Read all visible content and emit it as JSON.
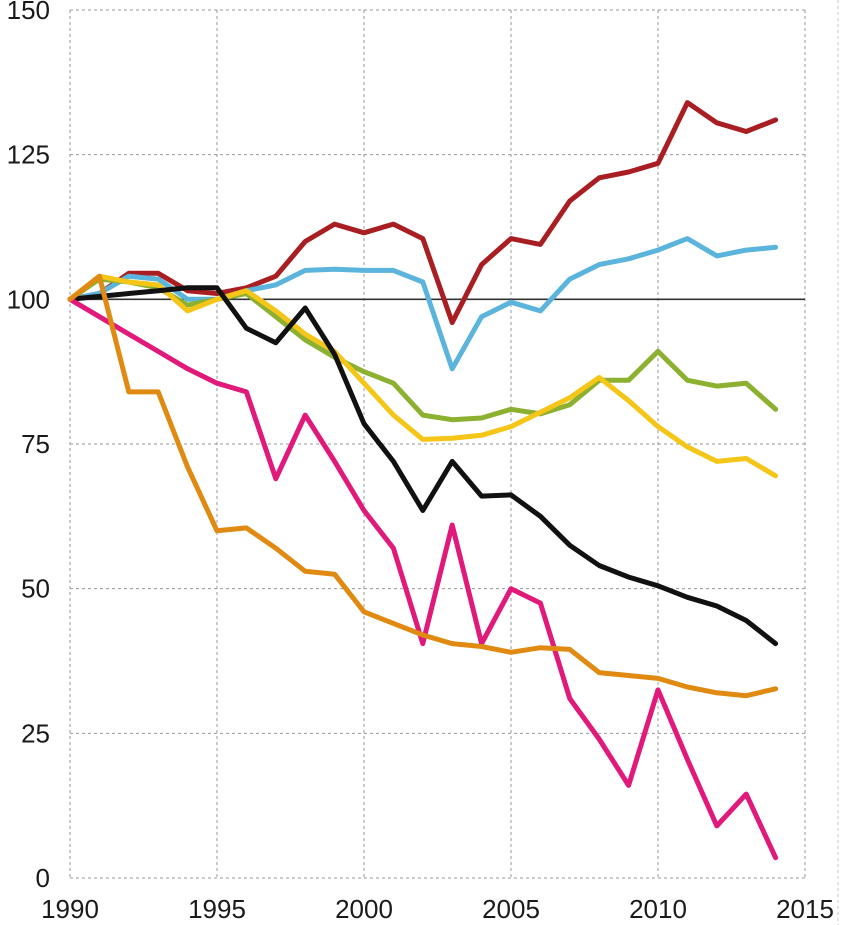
{
  "chart_data": {
    "type": "line",
    "title": "",
    "xlabel": "",
    "ylabel": "",
    "xlim": [
      1990,
      2015
    ],
    "ylim": [
      0,
      150
    ],
    "x_ticks": [
      "1990",
      "1995",
      "2000",
      "2005",
      "2010",
      "2015"
    ],
    "y_ticks": [
      "0",
      "25",
      "50",
      "75",
      "100",
      "125",
      "150"
    ],
    "reference_line": 100,
    "grid": true,
    "legend": "none",
    "x": [
      1990,
      1991,
      1992,
      1993,
      1994,
      1995,
      1996,
      1997,
      1998,
      1999,
      2000,
      2001,
      2002,
      2003,
      2004,
      2005,
      2006,
      2007,
      2008,
      2009,
      2010,
      2011,
      2012,
      2013,
      2014
    ],
    "series": [
      {
        "color": "#a81e22",
        "values": [
          100,
          101,
          104.5,
          104.5,
          101.5,
          101,
          102,
          104,
          110,
          113,
          111.5,
          113,
          110.5,
          96,
          106,
          110.5,
          109.5,
          117,
          121,
          122,
          123.5,
          134,
          130.5,
          129,
          131
        ]
      },
      {
        "color": "#5ab4dc",
        "values": [
          100,
          101,
          104,
          103.5,
          100,
          100,
          101.5,
          102.5,
          105,
          105.2,
          105,
          105,
          103,
          88,
          97,
          99.5,
          98,
          103.5,
          106,
          107,
          108.5,
          110.5,
          107.5,
          108.5,
          109
        ]
      },
      {
        "color": "#8cb02f",
        "values": [
          100,
          103.5,
          103,
          102,
          99,
          100,
          101,
          97,
          93,
          90,
          87.5,
          85.5,
          80,
          79.2,
          79.5,
          81,
          80.2,
          81.8,
          86,
          86,
          91,
          86,
          85,
          85.5,
          81
        ]
      },
      {
        "color": "#f5c518",
        "values": [
          100,
          104,
          103,
          102.5,
          98,
          100,
          101.5,
          98,
          94,
          91,
          85.5,
          80,
          75.8,
          76,
          76.5,
          78,
          80.5,
          83,
          86.5,
          82.5,
          78,
          74.5,
          72,
          72.5,
          69.5
        ]
      },
      {
        "color": "#111111",
        "values": [
          100,
          100.5,
          101,
          101.5,
          102,
          102,
          95,
          92.5,
          98.5,
          90.5,
          78.5,
          72,
          63.5,
          72,
          66,
          66.2,
          62.5,
          57.5,
          54,
          52,
          50.5,
          48.5,
          47,
          44.5,
          40.5
        ]
      },
      {
        "color": "#e0197a",
        "values": [
          100,
          97,
          94,
          91,
          88,
          85.5,
          84,
          69,
          80,
          72,
          63.5,
          57,
          40.5,
          61,
          40.5,
          50,
          47.5,
          31,
          24,
          16,
          32.5,
          20.5,
          9,
          14.5,
          3.5
        ]
      },
      {
        "color": "#e08a12",
        "values": [
          100,
          104,
          84,
          84,
          71,
          60,
          60.5,
          57,
          53,
          52.5,
          46,
          44,
          42,
          40.5,
          40,
          39,
          39.8,
          39.5,
          35.5,
          35,
          34.5,
          33,
          32,
          31.5,
          32.7
        ]
      }
    ]
  }
}
